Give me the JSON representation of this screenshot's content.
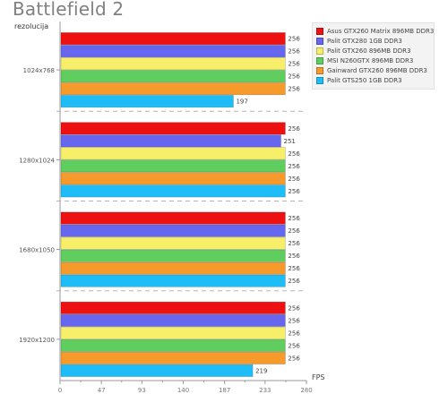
{
  "chart_data": {
    "type": "bar",
    "orientation": "horizontal",
    "title": "Battlefield 2",
    "category_axis_label": "rezolucija",
    "value_axis_label": "FPS",
    "categories": [
      "1024x768",
      "1280x1024",
      "1680x1050",
      "1920x1200"
    ],
    "series": [
      {
        "name": "Asus GTX260 Matrix 896MB DDR3",
        "color": "#ee1111",
        "values": [
          256,
          256,
          256,
          256
        ]
      },
      {
        "name": "Palit GTX280 1GB DDR3",
        "color": "#6666ee",
        "values": [
          256,
          251,
          256,
          256
        ]
      },
      {
        "name": "Palit GTX260 896MB DDR3",
        "color": "#f7ef6a",
        "values": [
          256,
          256,
          256,
          256
        ]
      },
      {
        "name": "MSI N260GTX 896MB DDR3",
        "color": "#5fce5f",
        "values": [
          256,
          256,
          256,
          256
        ]
      },
      {
        "name": "Gainward GTX260 896MB DDR3",
        "color": "#f59a2b",
        "values": [
          256,
          256,
          256,
          256
        ]
      },
      {
        "name": "Palit GTS250 1GB DDR3",
        "color": "#1fbdf7",
        "values": [
          197,
          256,
          256,
          219
        ]
      }
    ],
    "x_ticks": [
      "0",
      "47",
      "93",
      "140",
      "187",
      "233",
      "280"
    ],
    "xlim": [
      0,
      280
    ],
    "legend_position": "top-right"
  }
}
